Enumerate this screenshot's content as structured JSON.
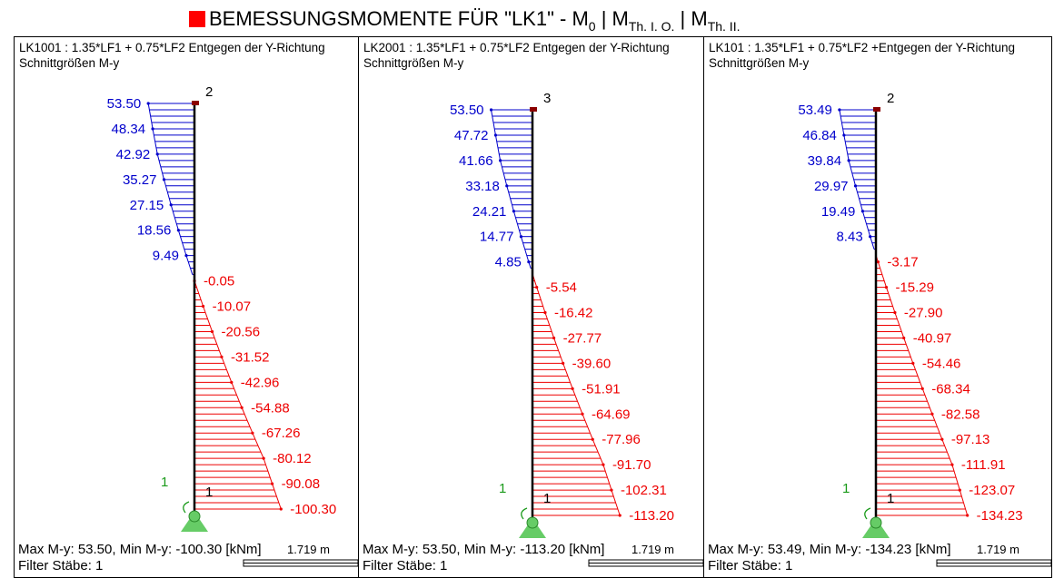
{
  "title": {
    "main": "BEMESSUNGSMOMENTE FÜR \"LK1\" -  M",
    "sub0": "0",
    "sep1": " |  M",
    "sub1": "Th. I. O.",
    "sep2": " |  M",
    "sub2": "Th. II."
  },
  "colors": {
    "positive": "#0000cc",
    "negative": "#ee0000",
    "title_marker": "#ff0000",
    "support": "#66cc66"
  },
  "panels": [
    {
      "line1": "LK1001 : 1.35*LF1 + 0.75*LF2  Entgegen der Y-Richtung",
      "line2": "Schnittgrößen M-y",
      "top_node": "2",
      "bottom_node": "1",
      "member": "1",
      "footer_max": "Max M-y: 53.50, Min M-y: -100.30 [kNm]",
      "footer_filter": "Filter Stäbe: 1",
      "scale_label": "1.719 m",
      "chart_data": {
        "type": "moment-diagram",
        "positive": [
          53.5,
          48.34,
          42.92,
          35.27,
          27.15,
          18.56,
          9.49
        ],
        "negative": [
          -0.05,
          -10.07,
          -20.56,
          -31.52,
          -42.96,
          -54.88,
          -67.26,
          -80.12,
          -90.08,
          -100.3
        ],
        "max": 53.5,
        "min": -100.3
      }
    },
    {
      "line1": "LK2001 : 1.35*LF1 + 0.75*LF2  Entgegen der Y-Richtung",
      "line2": "Schnittgrößen M-y",
      "top_node": "3",
      "bottom_node": "1",
      "member": "1",
      "footer_max": "Max M-y: 53.50, Min M-y: -113.20 [kNm]",
      "footer_filter": "Filter Stäbe: 1",
      "scale_label": "1.719 m",
      "chart_data": {
        "type": "moment-diagram",
        "positive": [
          53.5,
          47.72,
          41.66,
          33.18,
          24.21,
          14.77,
          4.85
        ],
        "negative": [
          -5.54,
          -16.42,
          -27.77,
          -39.6,
          -51.91,
          -64.69,
          -77.96,
          -91.7,
          -102.31,
          -113.2
        ],
        "max": 53.5,
        "min": -113.2
      }
    },
    {
      "line1": "LK101 : 1.35*LF1 + 0.75*LF2  +Entgegen der Y-Richtung",
      "line2": "Schnittgrößen M-y",
      "top_node": "2",
      "bottom_node": "1",
      "member": "1",
      "footer_max": "Max M-y: 53.49, Min M-y: -134.23 [kNm]",
      "footer_filter": "Filter Stäbe: 1",
      "scale_label": "1.719 m",
      "chart_data": {
        "type": "moment-diagram",
        "positive": [
          53.49,
          46.84,
          39.84,
          29.97,
          19.49,
          8.43
        ],
        "negative": [
          -3.17,
          -15.29,
          -27.9,
          -40.97,
          -54.46,
          -68.34,
          -82.58,
          -97.13,
          -111.91,
          -123.07,
          -134.23
        ],
        "max": 53.49,
        "min": -134.23
      }
    }
  ]
}
